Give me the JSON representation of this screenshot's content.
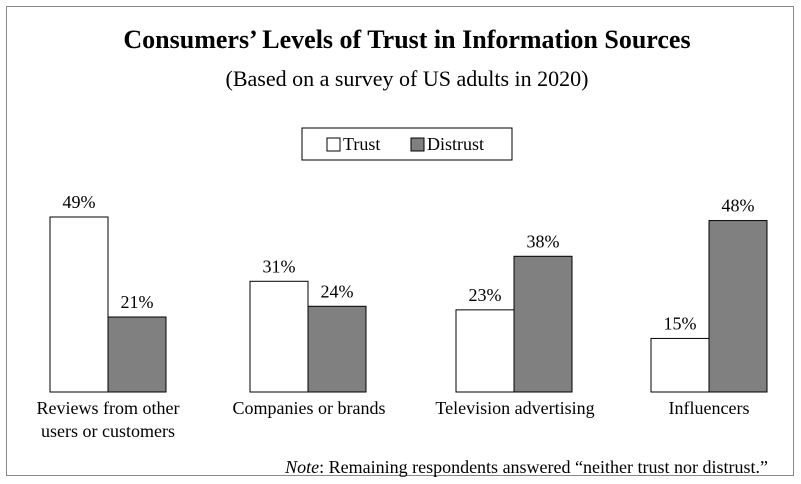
{
  "chart_data": {
    "type": "bar",
    "title": "Consumers’ Levels of Trust in Information Sources",
    "subtitle": "(Based on a survey of US adults in 2020)",
    "categories": [
      "Reviews from other users or customers",
      "Companies or brands",
      "Television advertising",
      "Influencers"
    ],
    "category_lines": [
      [
        "Reviews from other",
        "users or customers"
      ],
      [
        "Companies or brands"
      ],
      [
        "Television advertising"
      ],
      [
        "Influencers"
      ]
    ],
    "series": [
      {
        "name": "Trust",
        "values": [
          49,
          31,
          23,
          15
        ],
        "color": "#ffffff"
      },
      {
        "name": "Distrust",
        "values": [
          21,
          24,
          38,
          48
        ],
        "color": "#808080"
      }
    ],
    "value_suffix": "%",
    "ylim": [
      0,
      49
    ],
    "legend": "top-center",
    "grid": false,
    "note_prefix": "Note",
    "note_text": ": Remaining respondents answered “neither trust nor distrust.”"
  }
}
